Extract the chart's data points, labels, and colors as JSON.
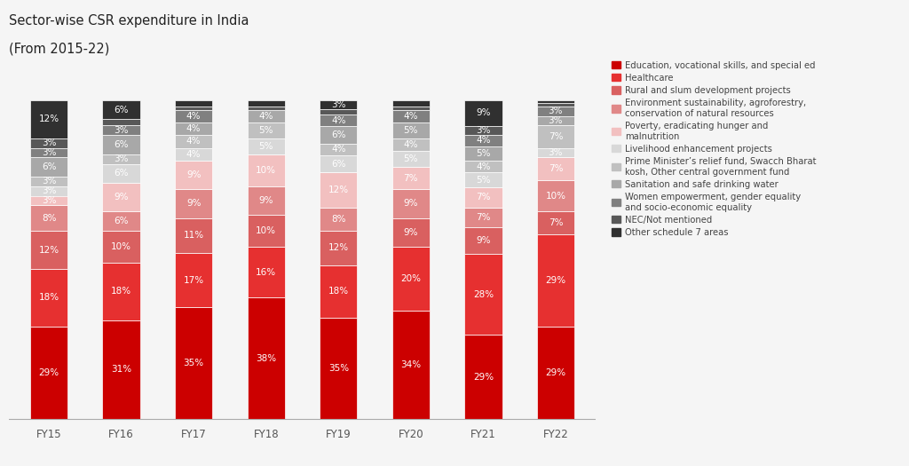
{
  "title_line1": "Sector-wise CSR expenditure in India",
  "title_line2": "(From 2015-22)",
  "years": [
    "FY15",
    "FY16",
    "FY17",
    "FY18",
    "FY19",
    "FY20",
    "FY21",
    "FY22"
  ],
  "segments": [
    {
      "label": "Education, vocational skills, and special ed",
      "color": "#cc0000",
      "values": [
        29,
        31,
        35,
        38,
        35,
        34,
        29,
        29
      ]
    },
    {
      "label": "Healthcare",
      "color": "#e63030",
      "values": [
        18,
        18,
        17,
        16,
        18,
        20,
        28,
        29
      ]
    },
    {
      "label": "Rural and slum development projects",
      "color": "#d96060",
      "values": [
        12,
        10,
        11,
        10,
        12,
        9,
        9,
        7
      ]
    },
    {
      "label": "Environment sustainability, agroforestry,\nconservation of natural resources",
      "color": "#e08888",
      "values": [
        8,
        6,
        9,
        9,
        8,
        9,
        7,
        10
      ]
    },
    {
      "label": "Poverty, eradicating hunger and\nmalnutrition",
      "color": "#f2c0c0",
      "values": [
        3,
        9,
        9,
        10,
        12,
        7,
        7,
        7
      ]
    },
    {
      "label": "Livelihood enhancement projects",
      "color": "#d8d8d8",
      "values": [
        3,
        6,
        4,
        5,
        6,
        5,
        5,
        3
      ]
    },
    {
      "label": "Prime Minister’s relief fund, Swacch Bharat\nkosh, Other central government fund",
      "color": "#c0c0c0",
      "values": [
        3,
        3,
        4,
        5,
        4,
        4,
        4,
        7
      ]
    },
    {
      "label": "Sanitation and safe drinking water",
      "color": "#a8a8a8",
      "values": [
        6,
        6,
        4,
        4,
        6,
        5,
        5,
        3
      ]
    },
    {
      "label": "Women empowerment, gender equality\nand socio-economic equality",
      "color": "#808080",
      "values": [
        3,
        3,
        4,
        0,
        4,
        4,
        4,
        3
      ]
    },
    {
      "label": "NEC/Not mentioned",
      "color": "#585858",
      "values": [
        3,
        2,
        1,
        1,
        2,
        1,
        3,
        1
      ]
    },
    {
      "label": "Other schedule 7 areas",
      "color": "#303030",
      "values": [
        12,
        6,
        2,
        2,
        3,
        2,
        9,
        1
      ]
    }
  ],
  "bg_color": "#f5f5f5",
  "bar_width": 0.52,
  "title_fontsize": 10.5,
  "label_fontsize": 7.5,
  "legend_fontsize": 7.2,
  "label_color_light": "#ffffff",
  "label_color_dark": "#555555"
}
